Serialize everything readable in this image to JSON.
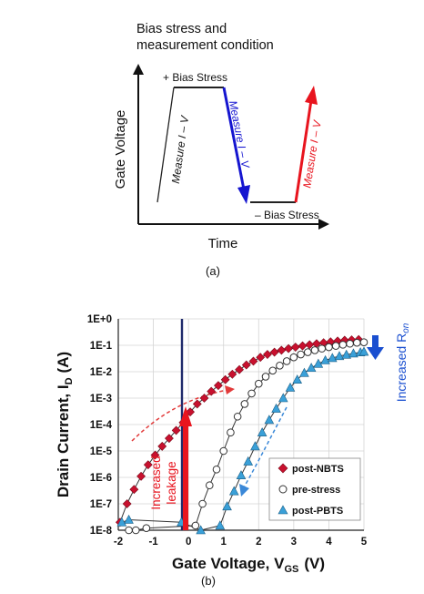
{
  "panel_a": {
    "title_line1": "Bias stress and",
    "title_line2": "measurement condition",
    "ylabel": "Gate Voltage",
    "xlabel": "Time",
    "label_pos_stress": "+ Bias Stress",
    "label_neg_stress": "– Bias Stress",
    "measure_1": "Measure I – V",
    "measure_2": "Measure I – V",
    "measure_3": "Measure I – V",
    "caption": "(a)",
    "colors": {
      "black": "#111111",
      "blue": "#1515d0",
      "red": "#e8141e"
    }
  },
  "panel_b": {
    "caption": "(b)",
    "annotation_leakage_1": "Increased",
    "annotation_leakage_2": "leakage",
    "annotation_ron": "Increased R",
    "annotation_ron_sub": "on",
    "colors": {
      "post_nbts": "#c8102e",
      "pre_stress": "#333333",
      "post_pbts": "#3aa0d8",
      "vline": "#1f2a6b",
      "red_arrow": "#e8141e",
      "blue_arrow": "#1a4fd0"
    }
  },
  "chart_data": {
    "type": "scatter",
    "title": "",
    "xlabel": "Gate Voltage, V",
    "xlabel_sub": "GS",
    "xlabel_unit": "(V)",
    "ylabel": "Drain Current, I",
    "ylabel_sub": "D",
    "ylabel_unit": "(A)",
    "xlim": [
      -2,
      5
    ],
    "ylim": [
      1e-08,
      1
    ],
    "yscale": "log",
    "grid": true,
    "legend_position": "bottom-right",
    "x_ticks": [
      "-2",
      "-1",
      "0",
      "1",
      "2",
      "3",
      "4",
      "5"
    ],
    "y_ticks": [
      "1E-8",
      "1E-7",
      "1E-6",
      "1E-5",
      "1E-4",
      "1E-3",
      "1E-2",
      "1E-1",
      "1E+0"
    ],
    "series": [
      {
        "name": "post-NBTS",
        "marker": "diamond",
        "x": [
          -1.95,
          -1.75,
          -1.55,
          -1.35,
          -1.15,
          -0.95,
          -0.75,
          -0.55,
          -0.35,
          -0.15,
          0.05,
          0.25,
          0.45,
          0.65,
          0.85,
          1.05,
          1.25,
          1.45,
          1.65,
          1.85,
          2.05,
          2.25,
          2.45,
          2.65,
          2.85,
          3.05,
          3.25,
          3.45,
          3.65,
          3.85,
          4.05,
          4.25,
          4.45,
          4.65,
          4.85
        ],
        "y": [
          2e-08,
          1e-07,
          3.5e-07,
          1.1e-06,
          3e-06,
          7e-06,
          1.5e-05,
          3e-05,
          6e-05,
          0.00012,
          0.0003,
          0.0006,
          0.001,
          0.0018,
          0.003,
          0.005,
          0.008,
          0.012,
          0.018,
          0.025,
          0.035,
          0.045,
          0.055,
          0.065,
          0.075,
          0.085,
          0.095,
          0.105,
          0.115,
          0.125,
          0.135,
          0.145,
          0.155,
          0.16,
          0.165
        ]
      },
      {
        "name": "pre-stress",
        "marker": "open-circle",
        "x": [
          -1.7,
          -1.5,
          -1.2,
          0.2,
          0.4,
          0.6,
          0.8,
          1.0,
          1.2,
          1.4,
          1.6,
          1.8,
          2.0,
          2.2,
          2.4,
          2.6,
          2.8,
          3.0,
          3.2,
          3.4,
          3.6,
          3.8,
          4.0,
          4.2,
          4.4,
          4.6,
          4.8,
          5.0
        ],
        "y": [
          1e-08,
          1e-08,
          1.2e-08,
          1.5e-08,
          1e-07,
          5e-07,
          2e-06,
          1e-05,
          5e-05,
          0.0002,
          0.0006,
          0.0015,
          0.0035,
          0.0065,
          0.011,
          0.017,
          0.025,
          0.035,
          0.045,
          0.055,
          0.065,
          0.075,
          0.085,
          0.095,
          0.105,
          0.115,
          0.125,
          0.13
        ]
      },
      {
        "name": "post-PBTS",
        "marker": "triangle",
        "x": [
          -1.9,
          -1.7,
          -0.2,
          0.35,
          0.9,
          1.1,
          1.3,
          1.5,
          1.7,
          1.9,
          2.1,
          2.3,
          2.5,
          2.7,
          2.9,
          3.1,
          3.3,
          3.5,
          3.7,
          3.9,
          4.1,
          4.3,
          4.5,
          4.7,
          4.9,
          5.0
        ],
        "y": [
          2e-08,
          2.5e-08,
          2e-08,
          1e-08,
          1.5e-08,
          8e-08,
          3e-07,
          1.2e-06,
          4e-06,
          1.5e-05,
          5e-05,
          0.00015,
          0.0004,
          0.001,
          0.0025,
          0.005,
          0.009,
          0.014,
          0.02,
          0.027,
          0.033,
          0.039,
          0.044,
          0.049,
          0.054,
          0.057
        ]
      }
    ]
  }
}
